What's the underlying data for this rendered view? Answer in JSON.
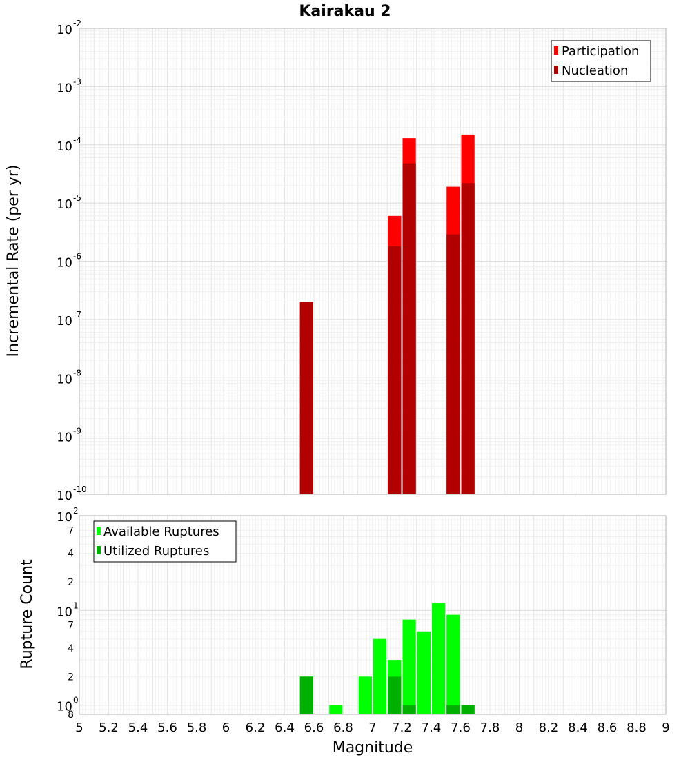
{
  "chart_data": [
    {
      "type": "bar",
      "title": "Kairakau 2",
      "ylabel": "Incremental Rate (per yr)",
      "xlabel": "",
      "xlim": [
        5,
        9
      ],
      "ylim": [
        1e-10,
        0.01
      ],
      "yscale": "log",
      "grid": true,
      "legend_placement": "top-right",
      "y_tick_labels": [
        {
          "value": 0.01,
          "base": "10",
          "exp": "-2"
        },
        {
          "value": 0.001,
          "base": "10",
          "exp": "-3"
        },
        {
          "value": 0.0001,
          "base": "10",
          "exp": "-4"
        },
        {
          "value": 1e-05,
          "base": "10",
          "exp": "-5"
        },
        {
          "value": 1e-06,
          "base": "10",
          "exp": "-6"
        },
        {
          "value": 1e-07,
          "base": "10",
          "exp": "-7"
        },
        {
          "value": 1e-08,
          "base": "10",
          "exp": "-8"
        },
        {
          "value": 1e-09,
          "base": "10",
          "exp": "-9"
        },
        {
          "value": 1e-10,
          "base": "10",
          "exp": "-10"
        }
      ],
      "series": [
        {
          "name": "Participation",
          "color": "#ff0000",
          "points": [
            {
              "x": 6.55,
              "y": 2e-07
            },
            {
              "x": 7.15,
              "y": 6e-06
            },
            {
              "x": 7.25,
              "y": 0.00013
            },
            {
              "x": 7.55,
              "y": 1.9e-05
            },
            {
              "x": 7.65,
              "y": 0.00015
            }
          ]
        },
        {
          "name": "Nucleation",
          "color": "#b20000",
          "points": [
            {
              "x": 6.55,
              "y": 2e-07
            },
            {
              "x": 7.15,
              "y": 1.8e-06
            },
            {
              "x": 7.25,
              "y": 4.8e-05
            },
            {
              "x": 7.55,
              "y": 2.9e-06
            },
            {
              "x": 7.65,
              "y": 2.2e-05
            }
          ]
        }
      ]
    },
    {
      "type": "bar",
      "title": "",
      "ylabel": "Rupture Count",
      "xlabel": "Magnitude",
      "xlim": [
        5,
        9
      ],
      "ylim": [
        0.8,
        100
      ],
      "yscale": "log",
      "grid": true,
      "legend_placement": "top-left",
      "x_ticks": [
        "5",
        "5.2",
        "5.4",
        "5.6",
        "5.8",
        "6",
        "6.2",
        "6.4",
        "6.6",
        "6.8",
        "7",
        "7.2",
        "7.4",
        "7.6",
        "7.8",
        "8",
        "8.2",
        "8.4",
        "8.6",
        "8.8",
        "9"
      ],
      "y_major_ticks": [
        {
          "value": 100,
          "base": "10",
          "exp": "2"
        },
        {
          "value": 10,
          "base": "10",
          "exp": "1"
        },
        {
          "value": 1,
          "base": "10",
          "exp": "0"
        }
      ],
      "y_minor_ticks": [
        {
          "value": 70,
          "label": "7"
        },
        {
          "value": 40,
          "label": "4"
        },
        {
          "value": 20,
          "label": "2"
        },
        {
          "value": 7,
          "label": "7"
        },
        {
          "value": 4,
          "label": "4"
        },
        {
          "value": 2,
          "label": "2"
        },
        {
          "value": 0.8,
          "label": "8"
        }
      ],
      "series": [
        {
          "name": "Available Ruptures",
          "color": "#00ff00",
          "points": [
            {
              "x": 6.55,
              "y": 2
            },
            {
              "x": 6.75,
              "y": 1
            },
            {
              "x": 6.95,
              "y": 2
            },
            {
              "x": 7.05,
              "y": 5
            },
            {
              "x": 7.15,
              "y": 3
            },
            {
              "x": 7.25,
              "y": 8
            },
            {
              "x": 7.35,
              "y": 6
            },
            {
              "x": 7.45,
              "y": 12
            },
            {
              "x": 7.55,
              "y": 9
            },
            {
              "x": 7.65,
              "y": 1
            }
          ]
        },
        {
          "name": "Utilized Ruptures",
          "color": "#00b000",
          "points": [
            {
              "x": 6.55,
              "y": 2
            },
            {
              "x": 7.15,
              "y": 2
            },
            {
              "x": 7.25,
              "y": 1
            },
            {
              "x": 7.55,
              "y": 1
            },
            {
              "x": 7.65,
              "y": 1
            }
          ]
        }
      ]
    }
  ]
}
